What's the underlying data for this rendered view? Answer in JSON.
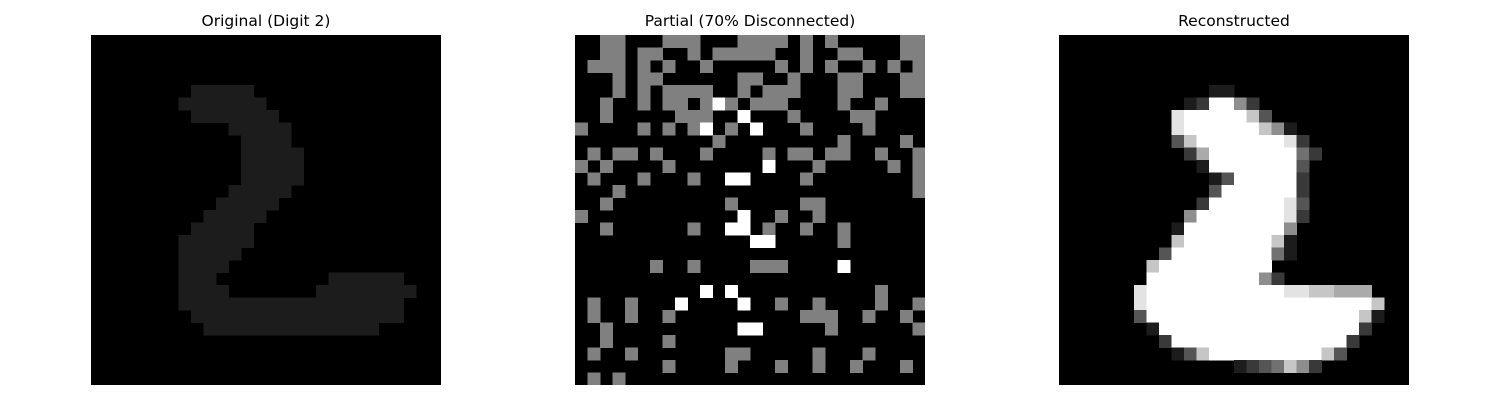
{
  "figure": {
    "colors": {
      "background": "#ffffff",
      "pixel_on": "#ffffff",
      "pixel_off": "#000000",
      "pixel_missing": "#808080"
    },
    "panels": [
      {
        "title": "Original (Digit 2)"
      },
      {
        "title": "Partial (70% Disconnected)"
      },
      {
        "title": "Reconstructed"
      }
    ]
  },
  "chart_data": [
    {
      "type": "heatmap",
      "title": "Original (Digit 2)",
      "colormap": "gray",
      "value_range": [
        0,
        1
      ],
      "grid": false,
      "axes": "off",
      "values": [
        "0000000000000000000000000000",
        "0000000000000000000000000000",
        "0000000000000000000000000000",
        "0000000000000000000000000000",
        "0000000011111000000000000000",
        "0000000111111100000000000000",
        "0000000011111110000000000000",
        "0000000000011111000000000000",
        "0000000000001111000000000000",
        "0000000000001111100000000000",
        "0000000000001111100000000000",
        "0000000000001111100000000000",
        "0000000000011111000000000000",
        "0000000000111110000000000000",
        "0000000001111100000000000000",
        "0000000011111000000000000000",
        "0000000111111000000000000000",
        "0000000111110000000000000000",
        "0000000111100000000000000000",
        "0000000111000000000111111000",
        "0000000111100000001111111100",
        "0000000111111111111111111000",
        "0000000011111111111111111000",
        "0000000001111111111111100000",
        "0000000000000000000000000000",
        "0000000000000000000000000000",
        "0000000000000000000000000000",
        "0000000000000000000000000000"
      ]
    },
    {
      "type": "heatmap",
      "title": "Partial (70% Disconnected)",
      "colormap": "gray",
      "value_range": [
        0,
        1
      ],
      "value_legend": {
        "0": "off",
        "0.5": "disconnected",
        "1": "on"
      },
      "grid": false,
      "axes": "off",
      "values": [
        "0033000222000232202030000022",
        "0033032002022223002002200032",
        "0232020200200000202030020302",
        "0002022000000220020002200022",
        "0003020222300202220002300033",
        "0020020230313022200003002000",
        "0020000032300100020000230000",
        "3000030203103010002000020000",
        "0000000000030000000002000020",
        "0303302000200003033032002002",
        "3020000200000001000300000202",
        "0200020002001100002000000003",
        "0003000000000000000000000003",
        "0020000000003000002200000000",
        "3000000000000100200300000000",
        "0030000002001103002002000000",
        "0000000000000011000002000000",
        "0000000000000000000000000000",
        "0000002002000033200001000000",
        "0000000000000000000000000000",
        "0000000000101000000000002000",
        "0300300010000100200200002002",
        "0200300300000000002220020030",
        "0020000000000110000020000002",
        "0020000300000000000000000000",
        "0200200000002200000300030000",
        "0000000200002000300200200020",
        "0202000000000000000000000000"
      ]
    },
    {
      "type": "heatmap",
      "title": "Reconstructed",
      "colormap": "gray",
      "value_range": [
        0,
        1
      ],
      "grid": false,
      "axes": "off",
      "values": [
        "0000000000000000000000000000",
        "0000000000000000000000000000",
        "0000000000000000000000000000",
        "0000000000000000000000000000",
        "0000000000001100000000000000",
        "0000000000129952000000000000",
        "0000000008999997300000000000",
        "0000000008999999751000000000",
        "0000000003799999998200000000",
        "0000000000269999999420000000",
        "0000000000019999999300000000",
        "0000000000001399999200000000",
        "0000000000003999999200000000",
        "0000000000029999998300000000",
        "0000000000599999998200000000",
        "0000000001999999995000000000",
        "0000000007999999971000000000",
        "0000000039999999941000000000",
        "0000000799999999900000000000",
        "0000000999999999520000000000",
        "0000008999999999998877666000",
        "0000008999999999999999999700",
        "0000003999999999999999997100",
        "0000000199999999999999992000",
        "0000000029999999999999920000",
        "0000000001379999999997300000",
        "0000000000000012347520000000",
        "0000000000000000000000000000"
      ]
    }
  ]
}
